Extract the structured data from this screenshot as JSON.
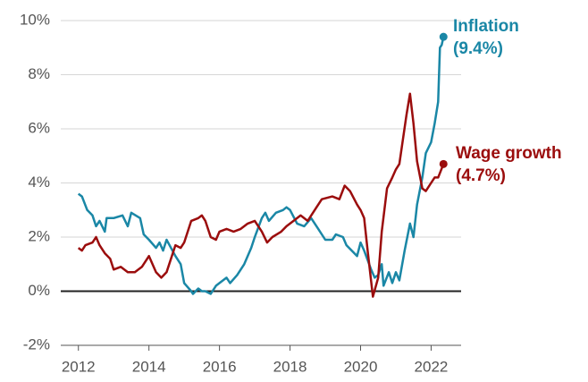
{
  "chart_data": {
    "type": "line",
    "xlim": [
      2011.5,
      2022.85
    ],
    "xticks": [
      2012,
      2014,
      2016,
      2018,
      2020,
      2022
    ],
    "ylim": [
      -2,
      10
    ],
    "yticks": [
      {
        "value": -2,
        "label": "-2%"
      },
      {
        "value": 0,
        "label": "0%"
      },
      {
        "value": 2,
        "label": "2%"
      },
      {
        "value": 4,
        "label": "4%"
      },
      {
        "value": 6,
        "label": "6%"
      },
      {
        "value": 8,
        "label": "8%"
      },
      {
        "value": 10,
        "label": "10%"
      }
    ],
    "grid": true,
    "series": [
      {
        "name": "Inflation",
        "color": "#1a87a6",
        "end_label": "(9.4%)",
        "x": [
          2012.0,
          2012.1,
          2012.25,
          2012.4,
          2012.5,
          2012.6,
          2012.75,
          2012.8,
          2013.0,
          2013.25,
          2013.4,
          2013.5,
          2013.75,
          2013.85,
          2014.0,
          2014.2,
          2014.3,
          2014.4,
          2014.5,
          2014.75,
          2014.9,
          2015.0,
          2015.2,
          2015.25,
          2015.4,
          2015.5,
          2015.6,
          2015.75,
          2015.9,
          2016.0,
          2016.2,
          2016.3,
          2016.5,
          2016.7,
          2016.9,
          2017.0,
          2017.2,
          2017.3,
          2017.4,
          2017.6,
          2017.8,
          2017.9,
          2018.0,
          2018.2,
          2018.4,
          2018.6,
          2018.75,
          2018.9,
          2019.0,
          2019.2,
          2019.3,
          2019.5,
          2019.6,
          2019.75,
          2019.9,
          2020.0,
          2020.1,
          2020.3,
          2020.4,
          2020.5,
          2020.6,
          2020.65,
          2020.8,
          2020.9,
          2021.0,
          2021.1,
          2021.25,
          2021.4,
          2021.5,
          2021.6,
          2021.75,
          2021.85,
          2022.0,
          2022.1,
          2022.2,
          2022.25,
          2022.3,
          2022.35
        ],
        "values": [
          3.6,
          3.5,
          3.0,
          2.8,
          2.4,
          2.6,
          2.2,
          2.7,
          2.7,
          2.8,
          2.4,
          2.9,
          2.7,
          2.1,
          1.9,
          1.6,
          1.8,
          1.5,
          1.9,
          1.3,
          1.0,
          0.3,
          0.0,
          -0.1,
          0.1,
          0.0,
          0.0,
          -0.1,
          0.2,
          0.3,
          0.5,
          0.3,
          0.6,
          1.0,
          1.6,
          2.0,
          2.7,
          2.9,
          2.6,
          2.9,
          3.0,
          3.1,
          3.0,
          2.5,
          2.4,
          2.7,
          2.4,
          2.1,
          1.9,
          1.9,
          2.1,
          2.0,
          1.7,
          1.5,
          1.3,
          1.8,
          1.5,
          0.8,
          0.5,
          0.6,
          1.0,
          0.2,
          0.7,
          0.3,
          0.7,
          0.4,
          1.5,
          2.5,
          2.0,
          3.2,
          4.2,
          5.1,
          5.5,
          6.2,
          7.0,
          9.0,
          9.1,
          9.4
        ]
      },
      {
        "name": "Wage growth",
        "color": "#9b0d0d",
        "end_label": "(4.7%)",
        "x": [
          2012.0,
          2012.1,
          2012.2,
          2012.4,
          2012.5,
          2012.6,
          2012.75,
          2012.9,
          2013.0,
          2013.2,
          2013.4,
          2013.6,
          2013.8,
          2014.0,
          2014.2,
          2014.35,
          2014.5,
          2014.75,
          2014.9,
          2015.0,
          2015.2,
          2015.4,
          2015.5,
          2015.6,
          2015.75,
          2015.9,
          2016.0,
          2016.2,
          2016.4,
          2016.6,
          2016.8,
          2017.0,
          2017.2,
          2017.35,
          2017.5,
          2017.75,
          2017.9,
          2018.1,
          2018.3,
          2018.5,
          2018.75,
          2018.9,
          2019.2,
          2019.4,
          2019.55,
          2019.7,
          2019.9,
          2020.0,
          2020.1,
          2020.2,
          2020.35,
          2020.5,
          2020.6,
          2020.75,
          2020.9,
          2021.0,
          2021.1,
          2021.3,
          2021.4,
          2021.5,
          2021.6,
          2021.75,
          2021.85,
          2022.0,
          2022.1,
          2022.2,
          2022.35
        ],
        "values": [
          1.6,
          1.5,
          1.7,
          1.8,
          2.0,
          1.7,
          1.4,
          1.2,
          0.8,
          0.9,
          0.7,
          0.7,
          0.9,
          1.3,
          0.7,
          0.5,
          0.7,
          1.7,
          1.6,
          1.8,
          2.6,
          2.7,
          2.8,
          2.6,
          2.0,
          1.9,
          2.2,
          2.3,
          2.2,
          2.3,
          2.5,
          2.6,
          2.2,
          1.8,
          2.0,
          2.2,
          2.4,
          2.6,
          2.8,
          2.6,
          3.1,
          3.4,
          3.5,
          3.4,
          3.9,
          3.7,
          3.2,
          3.0,
          2.7,
          1.5,
          -0.2,
          0.5,
          2.2,
          3.8,
          4.2,
          4.5,
          4.7,
          6.5,
          7.3,
          6.2,
          4.8,
          3.8,
          3.7,
          4.0,
          4.2,
          4.2,
          4.7
        ]
      }
    ]
  }
}
